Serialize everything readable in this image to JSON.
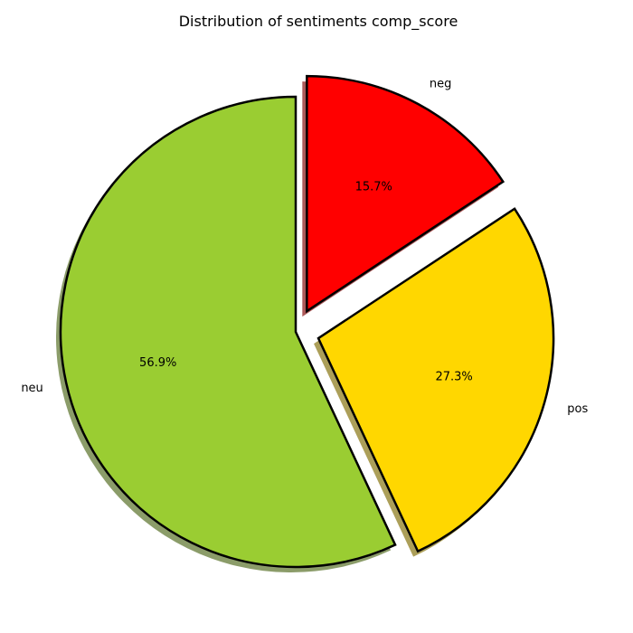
{
  "chart_data": {
    "type": "pie",
    "title": "Distribution of sentiments comp_score",
    "slices": [
      {
        "label": "neg",
        "value": 15.7,
        "pct_label": "15.7%",
        "color": "#ff0000",
        "exploded": true
      },
      {
        "label": "pos",
        "value": 27.3,
        "pct_label": "27.3%",
        "color": "#ffd700",
        "exploded": true
      },
      {
        "label": "neu",
        "value": 56.9,
        "pct_label": "56.9%",
        "color": "#9acd32",
        "exploded": false
      }
    ],
    "start_angle": 90,
    "direction": "clockwise",
    "shadow": true,
    "edge_color": "#000000"
  }
}
